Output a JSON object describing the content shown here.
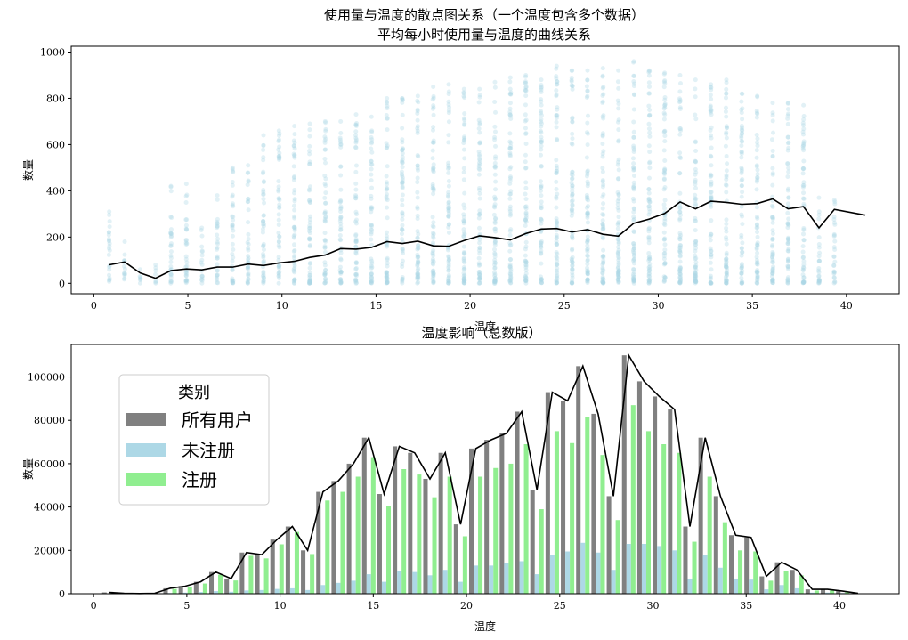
{
  "chart_data": [
    {
      "type": "scatter",
      "title_line1": "使用量与温度的散点图关系（一个温度包含多个数据）",
      "title_line2": "平均每小时使用量与温度的曲线关系",
      "xlabel": "温度",
      "ylabel": "数量",
      "xlim": [
        -1.2,
        42.8
      ],
      "ylim": [
        -45,
        1025
      ],
      "xticks": [
        0,
        5,
        10,
        15,
        20,
        25,
        30,
        35,
        40
      ],
      "yticks": [
        0,
        200,
        400,
        600,
        800,
        1000
      ],
      "scatter_color": "#add8e6",
      "line_color": "#000000",
      "scatter_series": {
        "temps": [
          0.82,
          1.64,
          2.46,
          3.28,
          4.1,
          4.92,
          5.74,
          6.56,
          7.38,
          8.2,
          9.02,
          9.84,
          10.66,
          11.48,
          12.3,
          13.12,
          13.94,
          14.76,
          15.58,
          16.4,
          17.22,
          18.04,
          18.86,
          19.68,
          20.5,
          21.32,
          22.14,
          22.96,
          23.78,
          24.6,
          25.42,
          26.24,
          27.06,
          27.88,
          28.7,
          29.52,
          30.34,
          31.16,
          31.98,
          32.8,
          33.62,
          34.44,
          35.26,
          36.08,
          36.9,
          37.72,
          38.54,
          39.36
        ],
        "max_counts": [
          310,
          180,
          60,
          80,
          420,
          430,
          240,
          380,
          500,
          510,
          640,
          660,
          680,
          690,
          700,
          700,
          730,
          720,
          800,
          800,
          810,
          850,
          860,
          840,
          840,
          870,
          890,
          900,
          880,
          940,
          920,
          920,
          930,
          920,
          960,
          920,
          910,
          900,
          880,
          860,
          880,
          820,
          810,
          780,
          780,
          770,
          370,
          360
        ]
      },
      "line_series": {
        "x": [
          0.82,
          1.64,
          2.46,
          3.28,
          4.1,
          4.92,
          5.74,
          6.56,
          7.38,
          8.2,
          9.02,
          9.84,
          10.66,
          11.48,
          12.3,
          13.12,
          13.94,
          14.76,
          15.58,
          16.4,
          17.22,
          18.04,
          18.86,
          19.68,
          20.5,
          21.32,
          22.14,
          22.96,
          23.78,
          24.6,
          25.42,
          26.24,
          27.06,
          27.88,
          28.7,
          29.52,
          30.34,
          31.16,
          31.98,
          32.8,
          33.62,
          34.44,
          35.26,
          36.08,
          36.9,
          37.72,
          38.54,
          39.36,
          41.0
        ],
        "y": [
          80,
          92,
          45,
          22,
          55,
          62,
          58,
          70,
          70,
          83,
          77,
          88,
          95,
          112,
          122,
          150,
          148,
          155,
          180,
          172,
          182,
          162,
          160,
          185,
          205,
          198,
          188,
          215,
          235,
          237,
          222,
          232,
          212,
          204,
          260,
          278,
          302,
          352,
          322,
          355,
          350,
          342,
          345,
          365,
          322,
          332,
          240,
          320,
          295
        ]
      }
    },
    {
      "type": "bar",
      "title": "温度影响（总数版）",
      "xlabel": "温度",
      "ylabel": "数量",
      "xlim": [
        -1.2,
        43.2
      ],
      "ylim": [
        0,
        115000
      ],
      "xticks": [
        0,
        5,
        10,
        15,
        20,
        25,
        30,
        35,
        40
      ],
      "yticks": [
        0,
        20000,
        40000,
        60000,
        80000,
        100000
      ],
      "legend": {
        "title": "类别",
        "placement": "upper-left",
        "entries": [
          "所有用户",
          "未注册",
          "注册"
        ]
      },
      "series_colors": {
        "all": "#808080",
        "unreg": "#add8e6",
        "reg": "#90ee90",
        "line": "#000000"
      },
      "temps": [
        0.82,
        1.64,
        2.46,
        3.28,
        4.1,
        4.92,
        5.74,
        6.56,
        7.38,
        8.2,
        9.02,
        9.84,
        10.66,
        11.48,
        12.3,
        13.12,
        13.94,
        14.76,
        15.58,
        16.4,
        17.22,
        18.04,
        18.86,
        19.68,
        20.5,
        21.32,
        22.14,
        22.96,
        23.78,
        24.6,
        25.42,
        26.24,
        27.06,
        27.88,
        28.7,
        29.52,
        30.34,
        31.16,
        31.98,
        32.8,
        33.62,
        34.44,
        35.26,
        36.08,
        36.9,
        37.72,
        38.54,
        39.36,
        40.18,
        41.0
      ],
      "series": [
        {
          "name": "所有用户",
          "values": [
            600,
            200,
            100,
            200,
            2500,
            3500,
            5500,
            10000,
            7000,
            19000,
            18000,
            25000,
            31000,
            20000,
            47000,
            52000,
            60000,
            72000,
            46000,
            68000,
            65000,
            53000,
            65000,
            32000,
            67000,
            71000,
            74000,
            84000,
            48000,
            93000,
            89000,
            105000,
            83000,
            45000,
            110000,
            98000,
            91000,
            85000,
            31000,
            72000,
            45000,
            27000,
            26000,
            8000,
            14500,
            11000,
            2000,
            2000,
            1200,
            200
          ]
        },
        {
          "name": "未注册",
          "values": [
            100,
            50,
            30,
            50,
            300,
            500,
            800,
            1200,
            900,
            1500,
            1700,
            2200,
            2500,
            1700,
            4000,
            5000,
            6000,
            9000,
            5500,
            10500,
            10000,
            8500,
            11000,
            5500,
            13000,
            13000,
            14000,
            15000,
            9000,
            18000,
            19500,
            23500,
            19000,
            11000,
            23000,
            23000,
            22000,
            20000,
            7000,
            18000,
            12000,
            7000,
            6500,
            2000,
            4000,
            2500,
            500,
            500,
            300,
            50
          ]
        },
        {
          "name": "注册",
          "values": [
            500,
            150,
            70,
            150,
            2200,
            3000,
            4700,
            8800,
            6100,
            17500,
            16300,
            22800,
            28500,
            18300,
            43000,
            47000,
            54000,
            63000,
            40500,
            57500,
            55000,
            44500,
            54000,
            26500,
            54000,
            58000,
            60000,
            69000,
            39000,
            75000,
            69500,
            81500,
            64000,
            34000,
            87000,
            75000,
            69000,
            65000,
            24000,
            54000,
            33000,
            20000,
            19500,
            6000,
            10500,
            8500,
            1500,
            1500,
            900,
            150
          ]
        }
      ]
    }
  ]
}
